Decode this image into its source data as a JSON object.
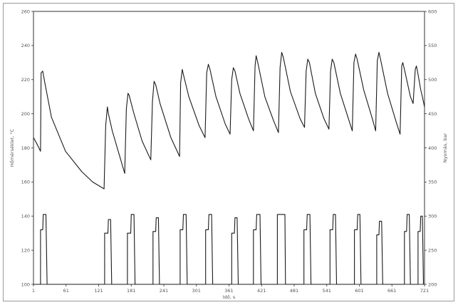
{
  "chart_data": {
    "type": "line",
    "title": "",
    "xlabel": "Idő, s",
    "ylabel_left": "Hőmérséklet, °C",
    "ylabel_right": "Nyomás, bar",
    "xlim": [
      1,
      721
    ],
    "ylim_left": [
      100,
      260
    ],
    "ylim_right": [
      200,
      600
    ],
    "x_ticks": [
      1,
      61,
      121,
      181,
      241,
      301,
      361,
      421,
      481,
      541,
      601,
      661,
      721
    ],
    "y_ticks_left": [
      100,
      120,
      140,
      160,
      180,
      200,
      220,
      240,
      260
    ],
    "y_ticks_right": [
      200,
      250,
      300,
      350,
      400,
      450,
      500,
      550,
      600
    ],
    "grid": false,
    "legend": "none",
    "colors": {
      "line": "#1a1a1a",
      "axis": "#333333",
      "frame": "#9a9a9a"
    },
    "series": [
      {
        "axis": "left",
        "points": [
          [
            1,
            186
          ],
          [
            8,
            182
          ],
          [
            14,
            178
          ],
          [
            15,
            224
          ],
          [
            18,
            225
          ],
          [
            22,
            218
          ],
          [
            34,
            198
          ],
          [
            60,
            178
          ],
          [
            90,
            166
          ],
          [
            110,
            160
          ],
          [
            131,
            156
          ],
          [
            134,
            193
          ],
          [
            137,
            204
          ],
          [
            139,
            200
          ],
          [
            146,
            190
          ],
          [
            158,
            177
          ],
          [
            169,
            165
          ],
          [
            172,
            203
          ],
          [
            175,
            212
          ],
          [
            177,
            211
          ],
          [
            186,
            200
          ],
          [
            201,
            184
          ],
          [
            217,
            173
          ],
          [
            220,
            207
          ],
          [
            223,
            219
          ],
          [
            226,
            217
          ],
          [
            234,
            206
          ],
          [
            254,
            186
          ],
          [
            270,
            175
          ],
          [
            272,
            218
          ],
          [
            275,
            226
          ],
          [
            277,
            223
          ],
          [
            287,
            210
          ],
          [
            306,
            193
          ],
          [
            317,
            186
          ],
          [
            320,
            224
          ],
          [
            323,
            229
          ],
          [
            326,
            226
          ],
          [
            337,
            210
          ],
          [
            354,
            194
          ],
          [
            363,
            188
          ],
          [
            366,
            220
          ],
          [
            369,
            227
          ],
          [
            372,
            225
          ],
          [
            381,
            212
          ],
          [
            397,
            197
          ],
          [
            406,
            190
          ],
          [
            409,
            228
          ],
          [
            411,
            234
          ],
          [
            414,
            230
          ],
          [
            427,
            210
          ],
          [
            443,
            196
          ],
          [
            452,
            189
          ],
          [
            455,
            227
          ],
          [
            458,
            236
          ],
          [
            461,
            233
          ],
          [
            474,
            213
          ],
          [
            492,
            197
          ],
          [
            500,
            192
          ],
          [
            503,
            225
          ],
          [
            506,
            232
          ],
          [
            509,
            230
          ],
          [
            520,
            212
          ],
          [
            536,
            197
          ],
          [
            545,
            191
          ],
          [
            548,
            225
          ],
          [
            551,
            232
          ],
          [
            554,
            230
          ],
          [
            566,
            212
          ],
          [
            582,
            196
          ],
          [
            588,
            190
          ],
          [
            591,
            230
          ],
          [
            594,
            235
          ],
          [
            597,
            232
          ],
          [
            609,
            214
          ],
          [
            625,
            197
          ],
          [
            631,
            190
          ],
          [
            634,
            231
          ],
          [
            637,
            236
          ],
          [
            640,
            232
          ],
          [
            653,
            212
          ],
          [
            668,
            196
          ],
          [
            676,
            188
          ],
          [
            679,
            228
          ],
          [
            681,
            230
          ],
          [
            684,
            226
          ],
          [
            695,
            210
          ],
          [
            700,
            206
          ],
          [
            704,
            226
          ],
          [
            706,
            228
          ],
          [
            708,
            225
          ],
          [
            714,
            214
          ],
          [
            717,
            210
          ],
          [
            721,
            204
          ]
        ]
      },
      {
        "axis": "left",
        "points": [
          [
            1,
            100
          ],
          [
            14,
            100
          ],
          [
            14,
            132
          ],
          [
            18,
            132
          ],
          [
            19,
            141
          ],
          [
            24,
            141
          ],
          [
            26,
            100
          ],
          [
            132,
            100
          ],
          [
            132,
            130
          ],
          [
            138,
            130
          ],
          [
            139,
            138
          ],
          [
            143,
            138
          ],
          [
            145,
            100
          ],
          [
            174,
            100
          ],
          [
            174,
            130
          ],
          [
            180,
            130
          ],
          [
            181,
            141
          ],
          [
            186,
            141
          ],
          [
            188,
            100
          ],
          [
            221,
            100
          ],
          [
            221,
            131
          ],
          [
            226,
            131
          ],
          [
            227,
            139
          ],
          [
            231,
            139
          ],
          [
            233,
            100
          ],
          [
            271,
            100
          ],
          [
            271,
            132
          ],
          [
            276,
            132
          ],
          [
            277,
            141
          ],
          [
            282,
            141
          ],
          [
            284,
            100
          ],
          [
            318,
            100
          ],
          [
            318,
            132
          ],
          [
            323,
            132
          ],
          [
            324,
            141
          ],
          [
            329,
            141
          ],
          [
            331,
            100
          ],
          [
            366,
            100
          ],
          [
            366,
            130
          ],
          [
            371,
            130
          ],
          [
            372,
            139
          ],
          [
            376,
            139
          ],
          [
            378,
            100
          ],
          [
            406,
            100
          ],
          [
            406,
            132
          ],
          [
            411,
            132
          ],
          [
            412,
            141
          ],
          [
            418,
            141
          ],
          [
            420,
            100
          ],
          [
            450,
            100
          ],
          [
            450,
            141
          ],
          [
            464,
            141
          ],
          [
            465,
            100
          ],
          [
            499,
            100
          ],
          [
            499,
            132
          ],
          [
            504,
            132
          ],
          [
            505,
            141
          ],
          [
            510,
            141
          ],
          [
            512,
            100
          ],
          [
            547,
            100
          ],
          [
            547,
            132
          ],
          [
            552,
            132
          ],
          [
            553,
            141
          ],
          [
            557,
            141
          ],
          [
            559,
            100
          ],
          [
            592,
            100
          ],
          [
            592,
            132
          ],
          [
            597,
            132
          ],
          [
            598,
            141
          ],
          [
            602,
            141
          ],
          [
            604,
            100
          ],
          [
            633,
            100
          ],
          [
            633,
            129
          ],
          [
            637,
            129
          ],
          [
            638,
            137
          ],
          [
            642,
            137
          ],
          [
            644,
            100
          ],
          [
            684,
            100
          ],
          [
            684,
            131
          ],
          [
            688,
            131
          ],
          [
            689,
            141
          ],
          [
            693,
            141
          ],
          [
            695,
            100
          ],
          [
            709,
            100
          ],
          [
            709,
            131
          ],
          [
            713,
            131
          ],
          [
            714,
            140
          ],
          [
            717,
            140
          ],
          [
            719,
            100
          ]
        ]
      }
    ]
  }
}
